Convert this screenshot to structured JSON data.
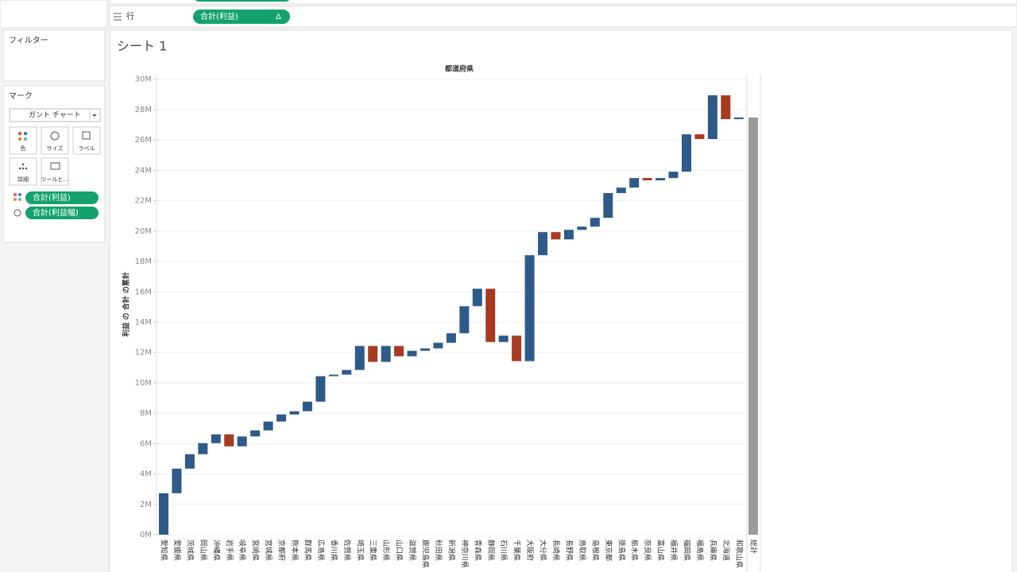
{
  "shelves": {
    "rows_label": "行",
    "rows_pill": "合計(利益)",
    "rows_pill_icon": "Δ"
  },
  "filters": {
    "title": "フィルター"
  },
  "marks": {
    "title": "マーク",
    "mark_type": "ガント チャート",
    "buttons": [
      "色",
      "サイズ",
      "ラベル",
      "詳細",
      "ツールヒ…"
    ],
    "pills": [
      "合計(利益)",
      "合計(利益幅)"
    ]
  },
  "chart_data": {
    "type": "waterfall",
    "title": "シート 1",
    "header": "都道府県",
    "y_label": "利益 の 合計 の累計",
    "categories": [
      "愛知県",
      "愛媛県",
      "茨城県",
      "岡山県",
      "沖縄県",
      "岩手県",
      "岐阜県",
      "宮崎県",
      "宮城県",
      "京都府",
      "熊本県",
      "群馬県",
      "広島県",
      "香川県",
      "佐賀県",
      "埼玉県",
      "三重県",
      "山形県",
      "山口県",
      "滋賀県",
      "鹿児島県",
      "秋田県",
      "新潟県",
      "神奈川県",
      "青森県",
      "静岡県",
      "石川県",
      "千葉県",
      "大阪府",
      "大分県",
      "長崎県",
      "長野県",
      "鳥取県",
      "島根県",
      "東京都",
      "徳島県",
      "栃木県",
      "奈良県",
      "富山県",
      "福井県",
      "福岡県",
      "福島県",
      "兵庫県",
      "北海道",
      "和歌山県"
    ],
    "values": [
      2.73,
      1.62,
      0.95,
      0.73,
      0.58,
      -0.79,
      0.65,
      0.4,
      0.58,
      0.47,
      0.21,
      0.63,
      1.68,
      0.1,
      0.31,
      1.58,
      -1.05,
      1.05,
      -0.68,
      0.36,
      0.16,
      0.37,
      0.63,
      1.78,
      1.15,
      -3.51,
      0.42,
      -1.68,
      6.98,
      1.52,
      -0.48,
      0.63,
      0.21,
      0.58,
      1.63,
      0.36,
      0.63,
      -0.15,
      0.15,
      0.42,
      2.46,
      -0.31,
      2.88,
      -1.57,
      0.11
    ],
    "total": {
      "label": "総計",
      "value": 27.48,
      "color": "#9b9b9b"
    },
    "colors": {
      "increase": "#2e5a88",
      "decrease": "#a63b22"
    },
    "ylim": [
      0,
      30.3
    ],
    "yticks": [
      {
        "value": 0,
        "label": "0M"
      },
      {
        "value": 2,
        "label": "2M"
      },
      {
        "value": 4,
        "label": "4M"
      },
      {
        "value": 6,
        "label": "6M"
      },
      {
        "value": 8,
        "label": "8M"
      },
      {
        "value": 10,
        "label": "10M"
      },
      {
        "value": 12,
        "label": "12M"
      },
      {
        "value": 14,
        "label": "14M"
      },
      {
        "value": 16,
        "label": "16M"
      },
      {
        "value": 18,
        "label": "18M"
      },
      {
        "value": 20,
        "label": "20M"
      },
      {
        "value": 22,
        "label": "22M"
      },
      {
        "value": 24,
        "label": "24M"
      },
      {
        "value": 26,
        "label": "26M"
      },
      {
        "value": 28,
        "label": "28M"
      },
      {
        "value": 30,
        "label": "30M"
      }
    ],
    "grid": true
  }
}
